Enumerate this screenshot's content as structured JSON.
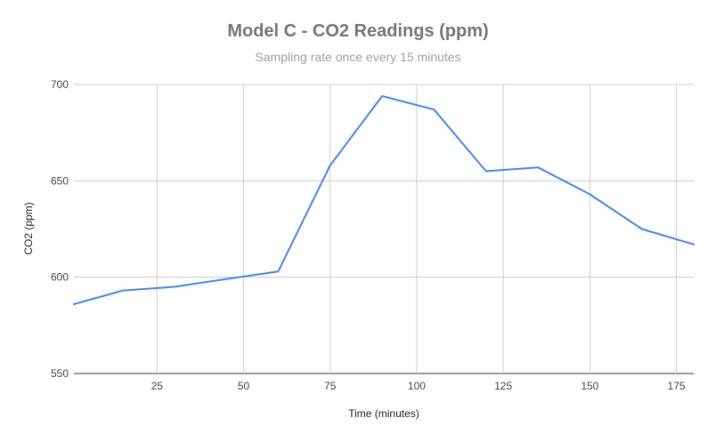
{
  "chart_data": {
    "type": "line",
    "title": "Model C - CO2 Readings (ppm)",
    "subtitle": "Sampling rate once every 15 minutes",
    "xlabel": "Time (minutes)",
    "ylabel": "CO2 (ppm)",
    "xlim": [
      1,
      180
    ],
    "ylim": [
      550,
      700
    ],
    "xticks": [
      25,
      50,
      75,
      100,
      125,
      150,
      175
    ],
    "yticks": [
      550,
      600,
      650,
      700
    ],
    "grid": true,
    "series": [
      {
        "color": "#4285f4",
        "x": [
          1,
          15,
          30,
          45,
          60,
          75,
          90,
          105,
          120,
          135,
          150,
          165,
          180
        ],
        "y": [
          586,
          593,
          595,
          599,
          603,
          658,
          694,
          687,
          655,
          657,
          643,
          625,
          617
        ]
      }
    ]
  }
}
